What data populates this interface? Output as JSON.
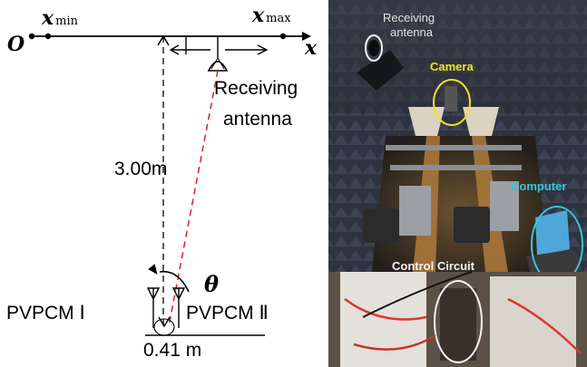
{
  "diagram": {
    "axis": {
      "origin_label": "O",
      "xmin_label": "x",
      "xmin_sub": "min",
      "xmax_label": "x",
      "xmax_sub": "max",
      "axis_label": "x"
    },
    "receiving_antenna_label_line1": "Receiving",
    "receiving_antenna_label_line2": "antenna",
    "distance_label": "3.00m",
    "angle_label": "θ",
    "pvpcm1_label": "PVPCM Ⅰ",
    "pvpcm2_label": "PVPCM Ⅱ",
    "spacing_label": "0.41 m"
  },
  "photo": {
    "receiving_antenna_line1": "Receiving",
    "receiving_antenna_line2": "antenna",
    "camera": "Camera",
    "computer": "Computer",
    "control_circuit": "Control Circuit",
    "colors": {
      "receiving_label": "#e6e6e6",
      "camera_label": "#f2e22a",
      "computer_label": "#37c6d6",
      "control_label": "#f4f4f4"
    }
  }
}
